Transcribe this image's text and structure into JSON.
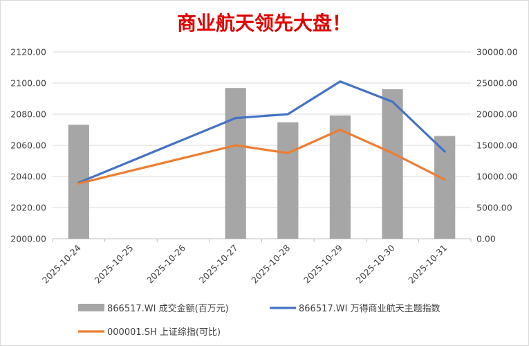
{
  "chart_data": {
    "type": "bar",
    "title": "商业航天领先大盘！",
    "categories": [
      "2025-10-24",
      "2025-10-25",
      "2025-10-26",
      "2025-10-27",
      "2025-10-28",
      "2025-10-29",
      "2025-10-30",
      "2025-10-31"
    ],
    "y_left": {
      "min": 2000,
      "max": 2120,
      "step": 20,
      "tick_format_decimals": 2
    },
    "y_right": {
      "min": 0,
      "max": 30000,
      "step": 5000,
      "tick_format_decimals": 2
    },
    "series": [
      {
        "name": "866517.WI 成交金额(百万元)",
        "kind": "bar",
        "axis": "right",
        "color": "#a6a6a6",
        "values": [
          18300,
          null,
          null,
          24200,
          18700,
          19800,
          24000,
          16500
        ]
      },
      {
        "name": "866517.WI 万得商业航天主题指数",
        "kind": "line",
        "axis": "left",
        "color": "#4472c4",
        "values": [
          2036,
          null,
          null,
          2077.5,
          2080,
          2101,
          2088,
          2056
        ]
      },
      {
        "name": "000001.SH 上证综指(可比)",
        "kind": "line",
        "axis": "left",
        "color": "#ed7d31",
        "values": [
          2035.5,
          null,
          null,
          2060,
          2055,
          2070,
          2055,
          2038
        ]
      }
    ],
    "legend_position": "bottom",
    "grid": {
      "horizontal": true,
      "vertical": false,
      "color": "#d9d9d9"
    }
  }
}
